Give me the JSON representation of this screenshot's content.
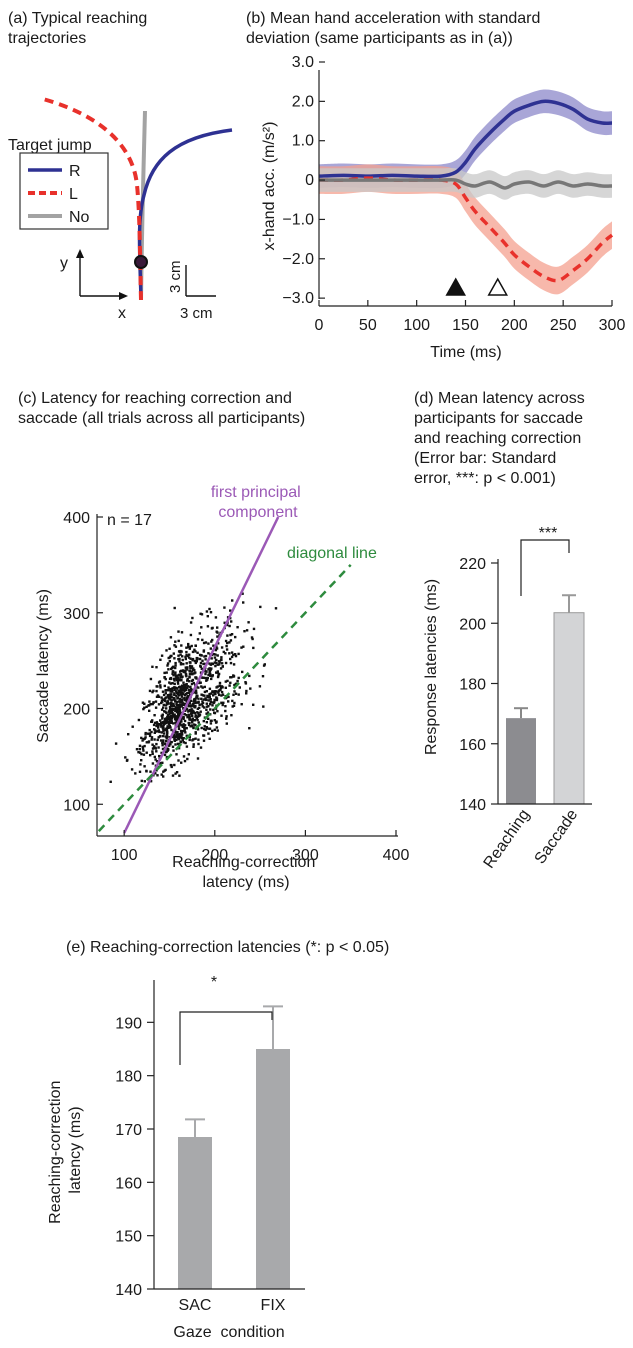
{
  "panels": {
    "a": {
      "title": "(a) Typical reaching\ntrajectories"
    },
    "b": {
      "title": "(b) Mean hand acceleration with standard\ndeviation (same participants as in (a))"
    },
    "c": {
      "title": "(c) Latency for reaching correction and\nsaccade (all trials across all participants)"
    },
    "d": {
      "title": "(d) Mean latency across\nparticipants for saccade\nand reaching correction\n(Error bar: Standard\nerror, ***: p < 0.001)"
    },
    "e": {
      "title": "(e) Reaching-correction latencies (*: p < 0.05)"
    }
  },
  "colors": {
    "R": "#2e3192",
    "R_band": "#8c88c9",
    "L": "#e8312b",
    "L_band": "#f4a08f",
    "No": "#9a9a9a",
    "No_band": "#c8c8c8",
    "pca": "#9b59b6",
    "diag": "#2e8b3e",
    "bar_dark": "#8c8c90",
    "bar_light": "#d3d4d6",
    "bar_e": "#a8a9ab"
  },
  "chart_data": [
    {
      "id": "a",
      "type": "line",
      "legend_title": "Target jump",
      "legend": [
        "R",
        "L",
        "No"
      ],
      "axis_labels": {
        "x": "x",
        "y": "y"
      },
      "scale_labels": {
        "vertical": "3 cm",
        "horizontal": "3 cm"
      },
      "series": [
        {
          "name": "R",
          "color": "#2e3192",
          "style": "solid"
        },
        {
          "name": "L",
          "color": "#e8312b",
          "style": "dashed"
        },
        {
          "name": "No",
          "color": "#9a9a9a",
          "style": "solid"
        }
      ]
    },
    {
      "id": "b",
      "type": "line",
      "xlabel": "Time (ms)",
      "ylabel": "x-hand acc. (m/s²)",
      "xlim": [
        0,
        300
      ],
      "ylim": [
        -3.2,
        3.0
      ],
      "xticks": [
        "0",
        "50",
        "100",
        "150",
        "200",
        "250",
        "300"
      ],
      "yticks": [
        "3.0",
        "2.0",
        "1.0",
        "0",
        "−1.0",
        "−2.0",
        "−3.0"
      ],
      "x": [
        0,
        25,
        50,
        75,
        100,
        125,
        140,
        150,
        160,
        175,
        190,
        200,
        215,
        230,
        245,
        260,
        275,
        290,
        300
      ],
      "series": [
        {
          "name": "R",
          "color": "#2e3192",
          "band_color": "#8c88c9",
          "style": "solid",
          "values": [
            0.1,
            0.12,
            0.1,
            0.12,
            0.1,
            0.1,
            0.2,
            0.45,
            0.8,
            1.2,
            1.55,
            1.75,
            1.9,
            2.0,
            1.95,
            1.8,
            1.55,
            1.45,
            1.45
          ],
          "sd": 0.3
        },
        {
          "name": "L",
          "color": "#e8312b",
          "band_color": "#f4a08f",
          "style": "dashed",
          "values": [
            0.0,
            0.0,
            0.05,
            0.0,
            0.0,
            0.0,
            -0.1,
            -0.45,
            -0.8,
            -1.2,
            -1.6,
            -1.9,
            -2.2,
            -2.45,
            -2.55,
            -2.3,
            -2.0,
            -1.6,
            -1.4
          ],
          "sd": 0.35
        },
        {
          "name": "No",
          "color": "#777777",
          "band_color": "#c8c8c8",
          "style": "solid",
          "values": [
            0.0,
            0.0,
            0.0,
            0.0,
            0.0,
            0.0,
            0.0,
            -0.1,
            -0.15,
            -0.05,
            -0.2,
            -0.1,
            -0.05,
            -0.15,
            -0.05,
            -0.15,
            -0.1,
            -0.15,
            -0.15
          ],
          "sd": 0.3
        }
      ],
      "markers": [
        {
          "name": "filled-triangle",
          "x": 140,
          "filled": true
        },
        {
          "name": "open-triangle",
          "x": 183,
          "filled": false
        }
      ]
    },
    {
      "id": "c",
      "type": "scatter",
      "xlabel": "Reaching-correction\nlatency (ms)",
      "ylabel": "Saccade latency (ms)",
      "xlim": [
        70,
        400
      ],
      "ylim": [
        70,
        400
      ],
      "xticks": [
        "100",
        "200",
        "300",
        "400"
      ],
      "yticks": [
        "100",
        "200",
        "300",
        "400"
      ],
      "annotation": "n = 17",
      "points_count": 1200,
      "point_distribution": {
        "x_center": 165,
        "x_sd": 25,
        "y_center": 205,
        "y_sd": 35
      },
      "lines": [
        {
          "name": "first principal\ncomponent",
          "color": "#9b59b6",
          "style": "solid",
          "x": [
            100,
            270
          ],
          "y": [
            70,
            400
          ]
        },
        {
          "name": "diagonal line",
          "color": "#2e8b3e",
          "style": "dashed",
          "x": [
            72,
            350
          ],
          "y": [
            72,
            350
          ]
        }
      ]
    },
    {
      "id": "d",
      "type": "bar",
      "ylabel": "Response latencies (ms)",
      "ylim": [
        140,
        220
      ],
      "yticks": [
        "140",
        "160",
        "180",
        "200",
        "220"
      ],
      "categories": [
        "Reaching",
        "Saccade"
      ],
      "values": [
        168.5,
        203.5
      ],
      "errors": [
        3.3,
        5.8
      ],
      "significance": "***"
    },
    {
      "id": "e",
      "type": "bar",
      "xlabel": "Gaze  condition",
      "ylabel": "Reaching-correction\nlatency (ms)",
      "ylim": [
        140,
        197
      ],
      "yticks": [
        "140",
        "150",
        "160",
        "170",
        "180",
        "190"
      ],
      "categories": [
        "SAC",
        "FIX"
      ],
      "values": [
        168.5,
        185
      ],
      "errors": [
        3.3,
        8
      ],
      "significance": "*"
    }
  ]
}
